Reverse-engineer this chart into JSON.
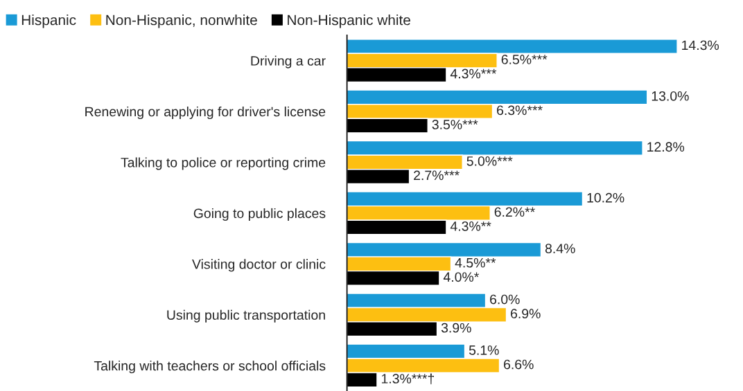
{
  "chart_data": {
    "type": "bar",
    "orientation": "horizontal",
    "categories": [
      "Driving a car",
      "Renewing or applying for driver's license",
      "Talking to police or reporting crime",
      "Going to public places",
      "Visiting doctor or clinic",
      "Using public transportation",
      "Talking with teachers or school officials"
    ],
    "series": [
      {
        "name": "Hispanic",
        "color": "#1a9ad6",
        "values": [
          14.3,
          13.0,
          12.8,
          10.2,
          8.4,
          6.0,
          5.1
        ],
        "value_labels": [
          "14.3%",
          "13.0%",
          "12.8%",
          "10.2%",
          "8.4%",
          "6.0%",
          "5.1%"
        ]
      },
      {
        "name": "Non-Hispanic, nonwhite",
        "color": "#fdbf11",
        "values": [
          6.5,
          6.3,
          5.0,
          6.2,
          4.5,
          6.9,
          6.6
        ],
        "value_labels": [
          "6.5%***",
          "6.3%***",
          "5.0%***",
          "6.2%**",
          "4.5%**",
          "6.9%",
          "6.6%"
        ]
      },
      {
        "name": "Non-Hispanic white",
        "color": "#000000",
        "values": [
          4.3,
          3.5,
          2.7,
          4.3,
          4.0,
          3.9,
          1.3
        ],
        "value_labels": [
          "4.3%***",
          "3.5%***",
          "2.7%***",
          "4.3%**",
          "4.0%*",
          "3.9%",
          "1.3%***†"
        ]
      }
    ],
    "legend": "top left",
    "grid": false,
    "tick_labels": "y"
  }
}
